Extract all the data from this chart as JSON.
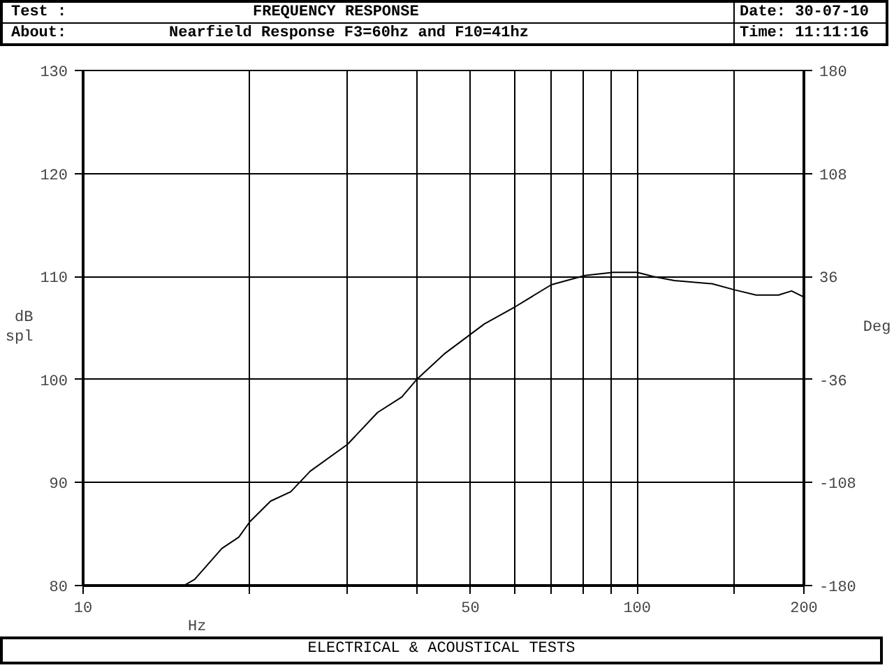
{
  "chart_data": {
    "type": "line",
    "title": "FREQUENCY RESPONSE",
    "subtitle": "Nearfield Response F3=60hz and F10=41hz",
    "annotations": [
      "Test :",
      "About:",
      "Date: 30-07-10",
      "Time: 11:11:16",
      "ELECTRICAL & ACOUSTICAL TESTS"
    ],
    "xlabel": "Hz",
    "ylabel": "dB\nspl",
    "y2label": "Deg",
    "log": "x",
    "grid": true,
    "xlim": [
      10,
      200
    ],
    "ylim": [
      80,
      130
    ],
    "y2lim": [
      -180,
      180
    ],
    "xticks": [
      10,
      {
        "value": 20,
        "label": null
      },
      {
        "value": 30,
        "label": null
      },
      {
        "value": 40,
        "label": null
      },
      50,
      {
        "value": 60,
        "label": null
      },
      {
        "value": 70,
        "label": null
      },
      {
        "value": 80,
        "label": null
      },
      {
        "value": 90,
        "label": null
      },
      100,
      {
        "value": 150,
        "label": null
      },
      200
    ],
    "yticks": [
      80,
      90,
      100,
      110,
      120,
      130
    ],
    "y2ticks": [
      -180,
      -108,
      -36,
      36,
      108,
      180
    ],
    "x": [
      15.2,
      15.9,
      17.8,
      19.1,
      20,
      21.8,
      23.7,
      25.7,
      30,
      34,
      37.6,
      40,
      44.9,
      53,
      60.4,
      70,
      80.5,
      90.5,
      100,
      107,
      116.7,
      136.5,
      150,
      164,
      180,
      190,
      200
    ],
    "series": [
      {
        "color": "#000000",
        "values": [
          80,
          80.6,
          83.6,
          84.7,
          86.2,
          88.2,
          89.1,
          91.1,
          93.7,
          96.8,
          98.3,
          100,
          102.5,
          105.4,
          107.1,
          109.2,
          110.1,
          110.4,
          110.4,
          110.0,
          109.6,
          109.3,
          108.7,
          108.2,
          108.2,
          108.6,
          108.0
        ]
      }
    ]
  }
}
